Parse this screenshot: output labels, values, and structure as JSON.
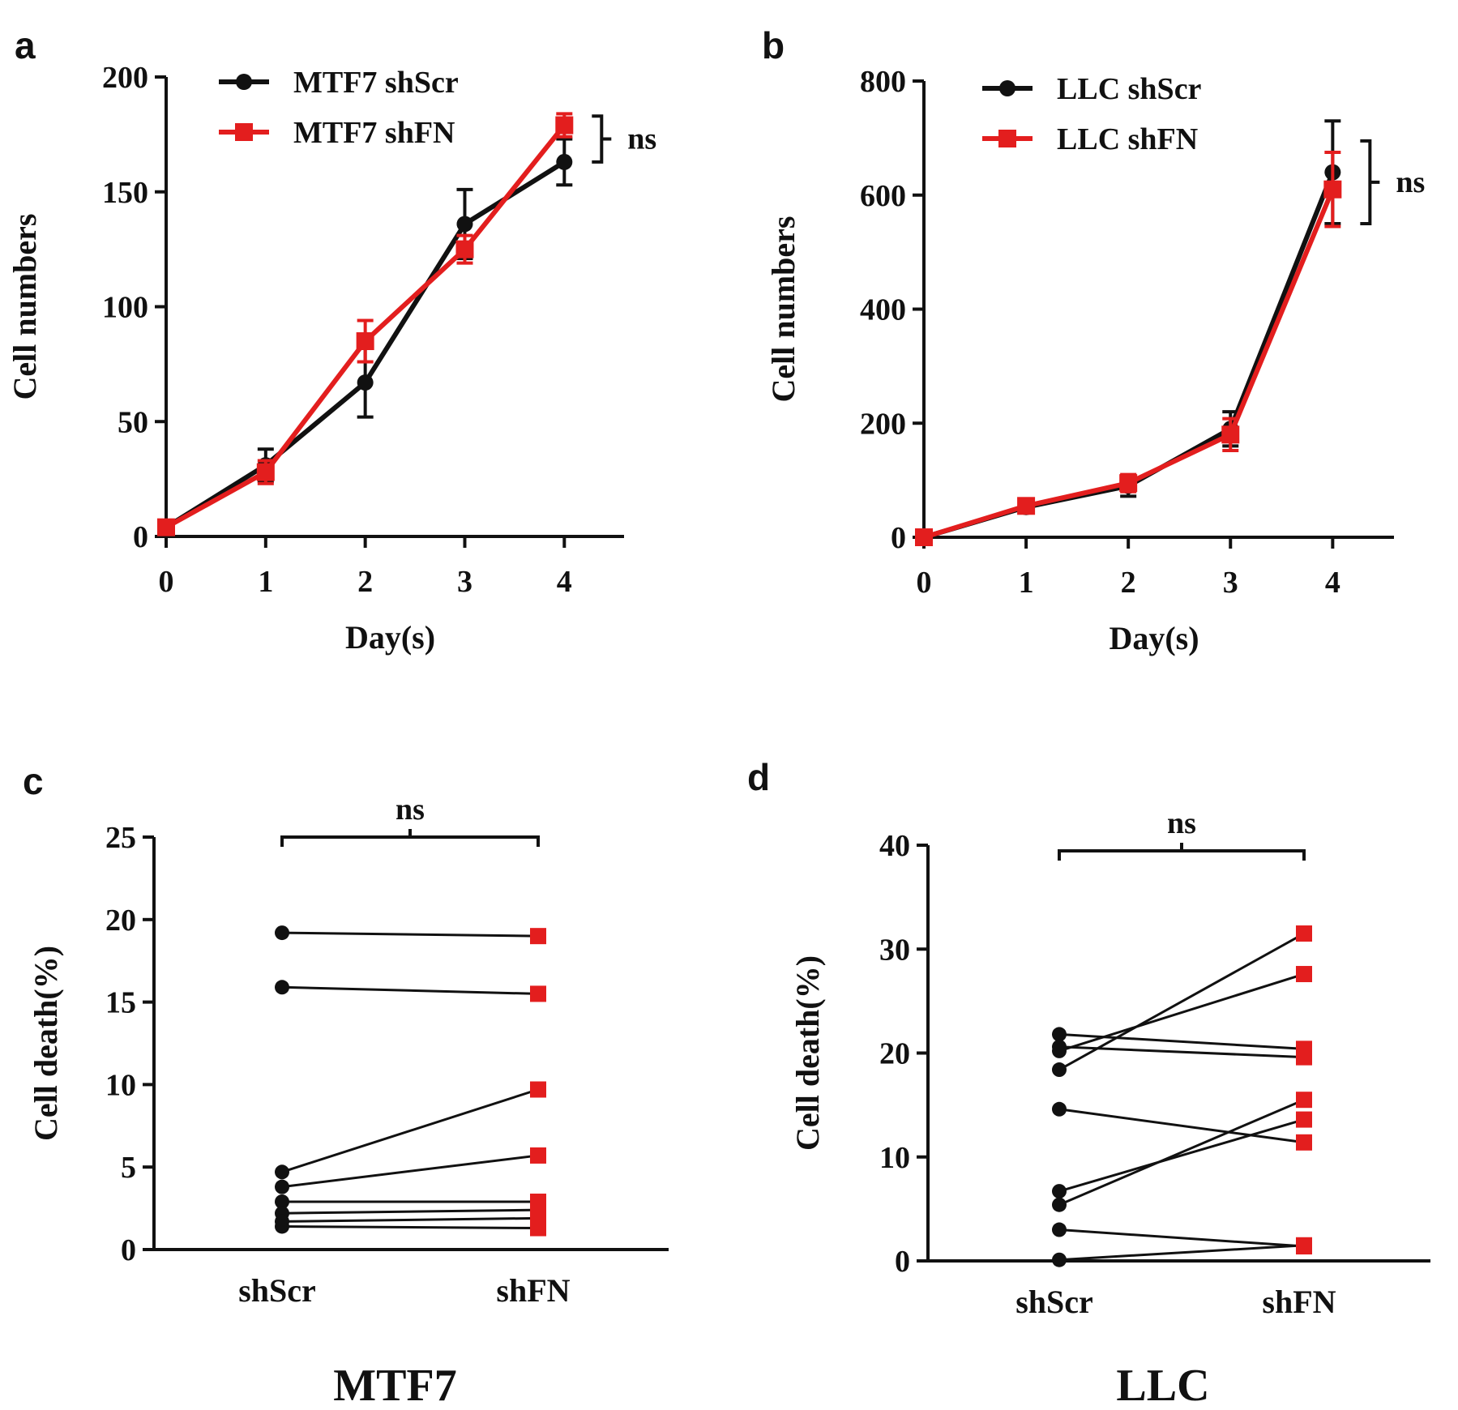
{
  "colors": {
    "black": "#111111",
    "red": "#e31e1e",
    "axis": "#111111"
  },
  "chart_data": [
    {
      "panel": "a",
      "type": "line",
      "title": "",
      "xlabel": "Day(s)",
      "ylabel": "Cell numbers",
      "x": [
        0,
        1,
        2,
        3,
        4
      ],
      "xticks": [
        "0",
        "1",
        "2",
        "3",
        "4"
      ],
      "yticks": [
        "0",
        "50",
        "100",
        "150",
        "200"
      ],
      "ylim": [
        0,
        200
      ],
      "xlim": [
        0,
        4.6
      ],
      "series": [
        {
          "name": "MTF7 shScr",
          "color": "#111111",
          "marker": "circle",
          "values": [
            4,
            31,
            67,
            136,
            163
          ],
          "errors": [
            2,
            7,
            15,
            15,
            10
          ]
        },
        {
          "name": "MTF7 shFN",
          "color": "#e31e1e",
          "marker": "square",
          "values": [
            4,
            28,
            85,
            125,
            179
          ],
          "errors": [
            2,
            5,
            9,
            6,
            5
          ]
        }
      ],
      "annotation": {
        "text": "ns",
        "from": 163,
        "to": 183
      }
    },
    {
      "panel": "b",
      "type": "line",
      "title": "",
      "xlabel": "Day(s)",
      "ylabel": "Cell numbers",
      "x": [
        0,
        1,
        2,
        3,
        4
      ],
      "xticks": [
        "0",
        "1",
        "2",
        "3",
        "4"
      ],
      "yticks": [
        "0",
        "200",
        "400",
        "600",
        "800"
      ],
      "ylim": [
        0,
        800
      ],
      "xlim": [
        0,
        4.6
      ],
      "series": [
        {
          "name": "LLC shScr",
          "color": "#111111",
          "marker": "circle",
          "values": [
            0,
            53,
            90,
            190,
            640
          ],
          "errors": [
            2,
            10,
            18,
            30,
            90
          ]
        },
        {
          "name": "LLC shFN",
          "color": "#e31e1e",
          "marker": "square",
          "values": [
            0,
            55,
            95,
            180,
            610
          ],
          "errors": [
            2,
            10,
            15,
            28,
            65
          ]
        }
      ],
      "annotation": {
        "text": "ns",
        "from": 550,
        "to": 695
      }
    },
    {
      "panel": "c",
      "type": "scatter",
      "title": "MTF7",
      "xlabel": "",
      "ylabel": "Cell death(%)",
      "categories": [
        "shScr",
        "shFN"
      ],
      "yticks": [
        "0",
        "5",
        "10",
        "15",
        "20",
        "25"
      ],
      "ylim": [
        0,
        25
      ],
      "pairs": [
        [
          19.2,
          19.0
        ],
        [
          15.9,
          15.5
        ],
        [
          4.7,
          9.7
        ],
        [
          3.8,
          5.7
        ],
        [
          2.9,
          2.9
        ],
        [
          2.2,
          2.4
        ],
        [
          1.7,
          1.9
        ],
        [
          1.4,
          1.3
        ]
      ],
      "significance": "ns"
    },
    {
      "panel": "d",
      "type": "scatter",
      "title": "LLC",
      "xlabel": "",
      "ylabel": "Cell death(%)",
      "categories": [
        "shScr",
        "shFN"
      ],
      "yticks": [
        "0",
        "10",
        "20",
        "30",
        "40"
      ],
      "ylim": [
        0,
        40
      ],
      "pairs": [
        [
          21.8,
          20.4
        ],
        [
          20.6,
          19.6
        ],
        [
          18.4,
          31.5
        ],
        [
          20.2,
          27.6
        ],
        [
          14.6,
          11.4
        ],
        [
          6.7,
          13.6
        ],
        [
          5.4,
          15.5
        ],
        [
          3.0,
          1.4
        ],
        [
          0.1,
          1.5
        ]
      ],
      "significance": "ns"
    }
  ]
}
